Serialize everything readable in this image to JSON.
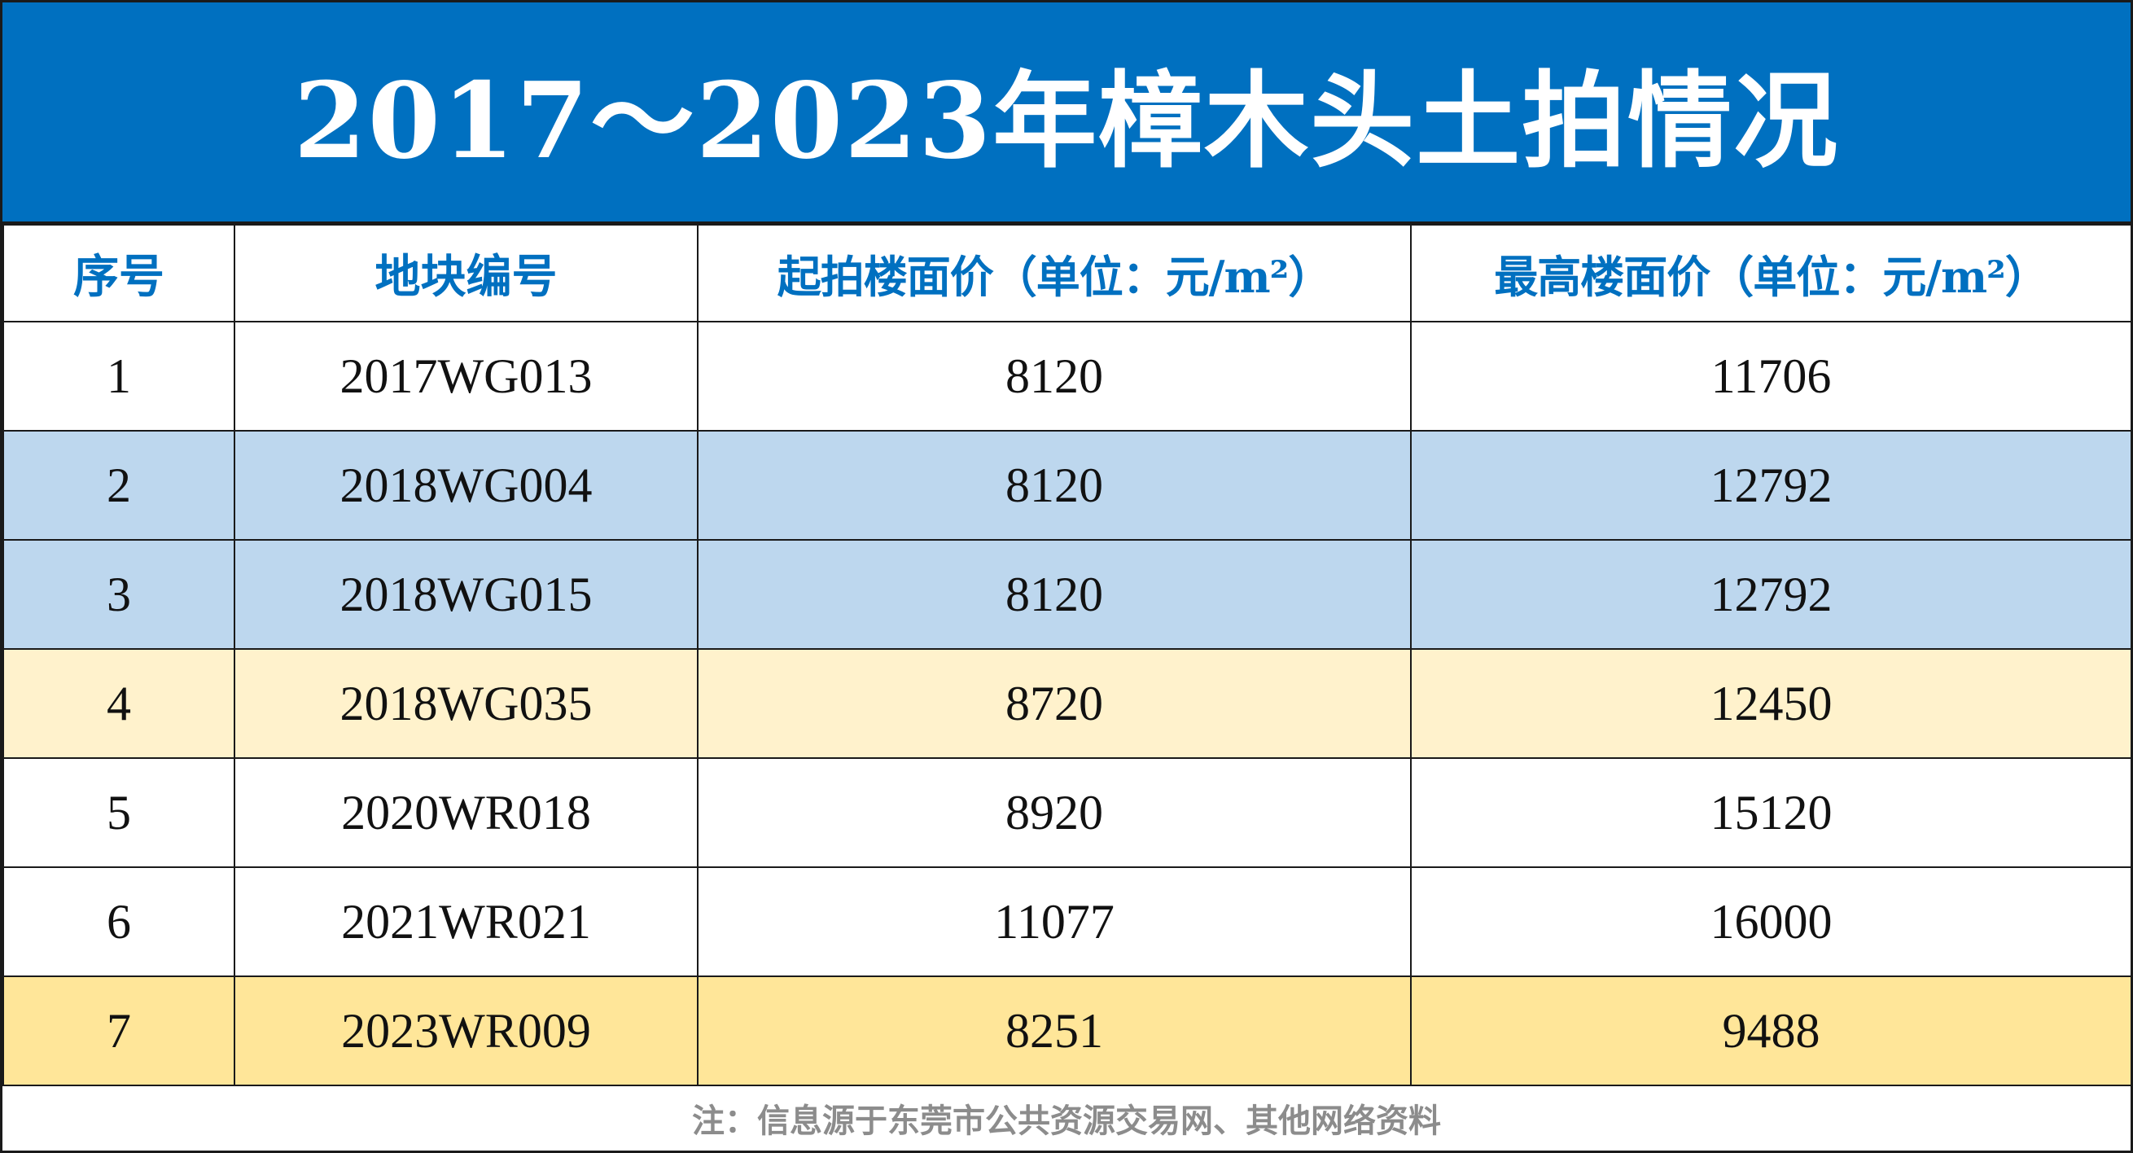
{
  "title": "2017～2023年樟木头土拍情况",
  "colors": {
    "header_bg": "#0070c0",
    "header_text": "#0070c0",
    "row_blue": "#bdd7ee",
    "row_yellow_light": "#fff2cc",
    "row_yellow": "#ffe699",
    "row_white": "#ffffff",
    "note_text": "#8c8c8c"
  },
  "table": {
    "headers": [
      "序号",
      "地块编号",
      "起拍楼面价（单位：元/m²）",
      "最高楼面价（单位：元/m²）"
    ],
    "rows": [
      {
        "cells": [
          "1",
          "2017WG013",
          "8120",
          "11706"
        ],
        "bg": "#ffffff"
      },
      {
        "cells": [
          "2",
          "2018WG004",
          "8120",
          "12792"
        ],
        "bg": "#bdd7ee"
      },
      {
        "cells": [
          "3",
          "2018WG015",
          "8120",
          "12792"
        ],
        "bg": "#bdd7ee"
      },
      {
        "cells": [
          "4",
          "2018WG035",
          "8720",
          "12450"
        ],
        "bg": "#fff2cc"
      },
      {
        "cells": [
          "5",
          "2020WR018",
          "8920",
          "15120"
        ],
        "bg": "#ffffff"
      },
      {
        "cells": [
          "6",
          "2021WR021",
          "11077",
          "16000"
        ],
        "bg": "#ffffff"
      },
      {
        "cells": [
          "7",
          "2023WR009",
          "8251",
          "9488"
        ],
        "bg": "#ffe699"
      }
    ]
  },
  "note": "注：信息源于东莞市公共资源交易网、其他网络资料"
}
